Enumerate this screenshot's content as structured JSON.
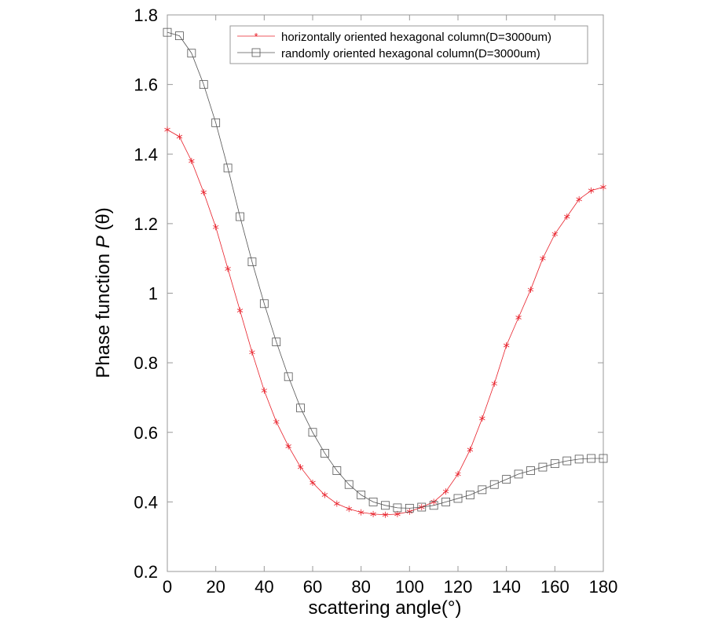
{
  "chart_data": {
    "type": "line",
    "title": "",
    "xlabel": "scattering angle(°)",
    "ylabel_prefix": "Phase function ",
    "ylabel_var": "P",
    "ylabel_suffix": " (θ)",
    "xlim": [
      0,
      180
    ],
    "ylim": [
      0.2,
      1.8
    ],
    "xticks": [
      "0",
      "20",
      "40",
      "60",
      "80",
      "100",
      "120",
      "140",
      "160",
      "180"
    ],
    "yticks": [
      "0.2",
      "0.4",
      "0.6",
      "0.8",
      "1",
      "1.2",
      "1.4",
      "1.6",
      "1.8"
    ],
    "grid": false,
    "legend_position": "top-right",
    "x": [
      0,
      5,
      10,
      15,
      20,
      25,
      30,
      35,
      40,
      45,
      50,
      55,
      60,
      65,
      70,
      75,
      80,
      85,
      90,
      95,
      100,
      105,
      110,
      115,
      120,
      125,
      130,
      135,
      140,
      145,
      150,
      155,
      160,
      165,
      170,
      175,
      180
    ],
    "series": [
      {
        "name": "horizontally oriented hexagonal column(D=3000um)",
        "color": "#e8202a",
        "marker": "asterisk",
        "values": [
          1.47,
          1.45,
          1.38,
          1.29,
          1.19,
          1.07,
          0.95,
          0.83,
          0.72,
          0.63,
          0.56,
          0.5,
          0.455,
          0.42,
          0.395,
          0.38,
          0.37,
          0.365,
          0.363,
          0.365,
          0.372,
          0.385,
          0.4,
          0.43,
          0.48,
          0.55,
          0.64,
          0.74,
          0.85,
          0.93,
          1.01,
          1.1,
          1.17,
          1.22,
          1.27,
          1.295,
          1.305
        ]
      },
      {
        "name": "randomly oriented hexagonal column(D=3000um)",
        "color": "#555555",
        "marker": "square",
        "values": [
          1.75,
          1.74,
          1.69,
          1.6,
          1.49,
          1.36,
          1.22,
          1.09,
          0.97,
          0.86,
          0.76,
          0.67,
          0.6,
          0.54,
          0.49,
          0.45,
          0.42,
          0.4,
          0.39,
          0.383,
          0.382,
          0.385,
          0.39,
          0.4,
          0.41,
          0.42,
          0.435,
          0.45,
          0.465,
          0.48,
          0.49,
          0.5,
          0.51,
          0.518,
          0.523,
          0.525,
          0.525
        ]
      }
    ]
  }
}
